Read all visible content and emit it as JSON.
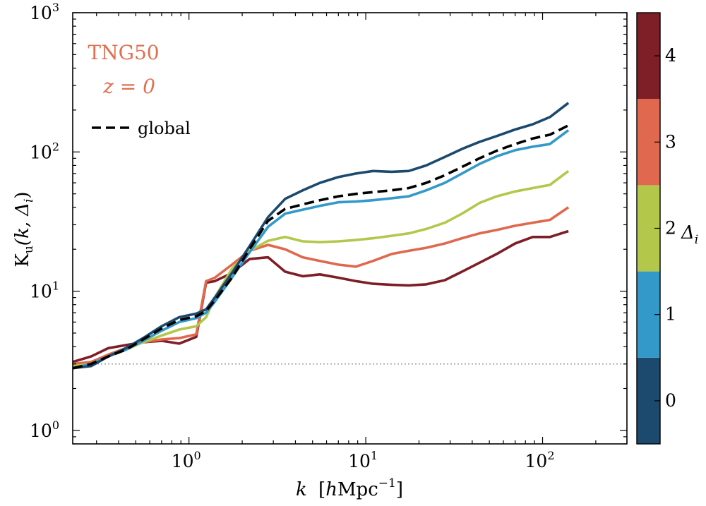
{
  "chart_data": {
    "type": "line",
    "x_scale": "log",
    "y_scale": "log",
    "xlim": [
      0.22,
      300
    ],
    "ylim": [
      0.8,
      1000
    ],
    "xlabel": {
      "var": "k",
      "bracket_open": "[",
      "h": "h",
      "unit": "Mpc",
      "exp": "−1",
      "bracket_close": "]"
    },
    "ylabel": {
      "base": "K",
      "sub": "u",
      "args": "(k, Δ",
      "args_sub": "i",
      "close": ")"
    },
    "x_ticks": [
      {
        "value": 1,
        "base": "10",
        "exp": "0"
      },
      {
        "value": 10,
        "base": "10",
        "exp": "1"
      },
      {
        "value": 100,
        "base": "10",
        "exp": "2"
      }
    ],
    "y_ticks": [
      {
        "value": 1,
        "base": "10",
        "exp": "0"
      },
      {
        "value": 10,
        "base": "10",
        "exp": "1"
      },
      {
        "value": 100,
        "base": "10",
        "exp": "2"
      },
      {
        "value": 1000,
        "base": "10",
        "exp": "3"
      }
    ],
    "annotations": [
      {
        "text": "TNG50",
        "color": "#E07050"
      },
      {
        "text": "z = 0",
        "color": "#E07050"
      }
    ],
    "reference_line": {
      "y": 3.0,
      "style": "dotted",
      "color": "#999999"
    },
    "legend": {
      "placement": "upper-left",
      "entries": [
        {
          "label": "global",
          "style": "dashed",
          "color": "#000000"
        }
      ]
    },
    "colorbar": {
      "label": "Δ",
      "label_sub": "i",
      "ticks": [
        "0",
        "1",
        "2",
        "3",
        "4"
      ],
      "colors": [
        "#1B4A6E",
        "#3399C8",
        "#B3C84B",
        "#E0684E",
        "#7E1E26"
      ]
    },
    "x": [
      0.22,
      0.28,
      0.35,
      0.44,
      0.55,
      0.7,
      0.88,
      1.1,
      1.25,
      1.4,
      1.75,
      2.2,
      2.8,
      3.5,
      4.4,
      5.5,
      7.0,
      8.8,
      11,
      14,
      17.5,
      22,
      28,
      35,
      44,
      55,
      70,
      88,
      110,
      140
    ],
    "series": [
      {
        "name": "global",
        "color": "#000000",
        "dashed": true,
        "values": [
          2.8,
          3.0,
          3.4,
          3.8,
          4.5,
          5.4,
          6.2,
          6.6,
          7.2,
          8.6,
          12.5,
          20,
          32,
          39,
          42,
          45,
          48,
          50,
          51.5,
          53,
          55,
          60,
          68,
          78,
          90,
          102,
          114,
          125,
          133,
          155
        ]
      },
      {
        "name": "0",
        "color": "#1B4A6E",
        "values": [
          2.8,
          2.9,
          3.4,
          3.9,
          4.6,
          5.6,
          6.5,
          6.9,
          7.4,
          9.0,
          13.5,
          21,
          34,
          46,
          53,
          60,
          66,
          70,
          73,
          72,
          73,
          80,
          92,
          105,
          118,
          130,
          145,
          158,
          178,
          225
        ]
      },
      {
        "name": "1",
        "color": "#3399C8",
        "values": [
          2.8,
          3.0,
          3.4,
          3.8,
          4.4,
          5.2,
          6.0,
          6.4,
          7.0,
          8.4,
          12.5,
          19,
          29,
          36,
          38.5,
          41,
          43.5,
          44,
          45,
          46.5,
          48,
          53,
          60,
          70,
          82,
          93,
          103,
          109,
          114,
          143
        ]
      },
      {
        "name": "2",
        "color": "#B3C84B",
        "values": [
          2.9,
          3.0,
          3.4,
          3.8,
          4.3,
          4.8,
          5.3,
          5.6,
          6.5,
          9.0,
          14.5,
          19.5,
          23,
          24.5,
          22.8,
          22.5,
          22.8,
          23.3,
          24,
          25,
          26,
          28,
          31,
          36,
          43,
          48,
          52,
          55,
          58,
          73
        ]
      },
      {
        "name": "3",
        "color": "#E0684E",
        "values": [
          3.0,
          3.1,
          3.5,
          3.9,
          4.3,
          4.5,
          4.6,
          4.9,
          11.8,
          12.5,
          15.5,
          19.5,
          21.5,
          20,
          17.5,
          16.5,
          15.5,
          15,
          16.5,
          18.5,
          19.5,
          20.5,
          22,
          24,
          26,
          27.5,
          29.5,
          31,
          32.5,
          40
        ]
      },
      {
        "name": "4",
        "color": "#7E1E26",
        "values": [
          3.1,
          3.4,
          3.9,
          4.1,
          4.3,
          4.4,
          4.2,
          4.7,
          11.5,
          11.8,
          13.5,
          17,
          17.5,
          13.8,
          12.8,
          13.2,
          12.5,
          11.8,
          11.3,
          11.1,
          11,
          11.2,
          12,
          13.8,
          16,
          18.5,
          22,
          24.5,
          24.5,
          27
        ]
      }
    ]
  }
}
